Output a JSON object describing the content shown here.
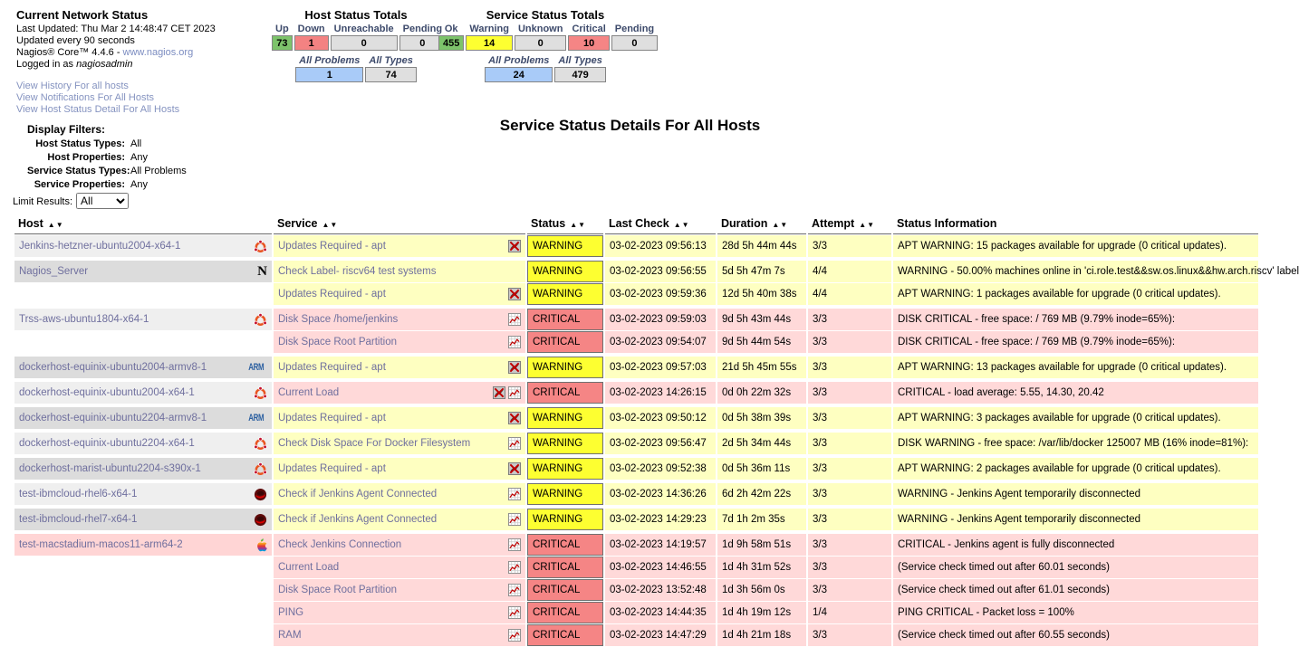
{
  "header": {
    "title": "Current Network Status",
    "last_updated": "Last Updated: Thu Mar 2 14:48:47 CET 2023",
    "update_interval": "Updated every 90 seconds",
    "version_prefix": "Nagios® Core™ 4.4.6 - ",
    "version_link": "www.nagios.org",
    "logged_in_prefix": "Logged in as ",
    "logged_in_user": "nagiosadmin",
    "links": [
      "View History For all hosts",
      "View Notifications For All Hosts",
      "View Host Status Detail For All Hosts"
    ]
  },
  "host_totals": {
    "title": "Host Status Totals",
    "columns": [
      {
        "label": "Up",
        "value": "73",
        "bg": "#7DC36B"
      },
      {
        "label": "Down",
        "value": "1",
        "bg": "#F38282"
      },
      {
        "label": "Unreachable",
        "value": "0",
        "bg": "#DFDFDF"
      },
      {
        "label": "Pending",
        "value": "0",
        "bg": "#DFDFDF"
      }
    ],
    "summary": [
      {
        "label": "All Problems",
        "value": "1",
        "bg": "#A9CBF8"
      },
      {
        "label": "All Types",
        "value": "74",
        "bg": "#DFDFDF"
      }
    ]
  },
  "service_totals": {
    "title": "Service Status Totals",
    "columns": [
      {
        "label": "Ok",
        "value": "455",
        "bg": "#7DC36B"
      },
      {
        "label": "Warning",
        "value": "14",
        "bg": "#FDFF31"
      },
      {
        "label": "Unknown",
        "value": "0",
        "bg": "#DFDFDF"
      },
      {
        "label": "Critical",
        "value": "10",
        "bg": "#F58585"
      },
      {
        "label": "Pending",
        "value": "0",
        "bg": "#DFDFDF"
      }
    ],
    "summary": [
      {
        "label": "All Problems",
        "value": "24",
        "bg": "#A9CBF8"
      },
      {
        "label": "All Types",
        "value": "479",
        "bg": "#DFDFDF"
      }
    ]
  },
  "filters": {
    "title": "Display Filters:",
    "rows": [
      {
        "label": "Host Status Types:",
        "value": "All"
      },
      {
        "label": "Host Properties:",
        "value": "Any"
      },
      {
        "label": "Service Status Types:",
        "value": "All Problems"
      },
      {
        "label": "Service Properties:",
        "value": "Any"
      }
    ]
  },
  "limit": {
    "label": "Limit Results:",
    "value": "All"
  },
  "page_title": "Service Status Details For All Hosts",
  "table": {
    "columns": [
      {
        "label": "Host",
        "sortable": true
      },
      {
        "label": "Service",
        "sortable": true
      },
      {
        "label": "Status",
        "sortable": true
      },
      {
        "label": "Last Check",
        "sortable": true
      },
      {
        "label": "Duration",
        "sortable": true
      },
      {
        "label": "Attempt",
        "sortable": true
      },
      {
        "label": "Status Information",
        "sortable": false
      }
    ],
    "rows": [
      {
        "host": "Jenkins-hetzner-ubuntu2004-x64-1",
        "host_icon": "ubuntu",
        "host_status": "up",
        "service": "Updates Required - apt",
        "service_icons": [
          "notifications-disabled"
        ],
        "status": "WARNING",
        "last_check": "03-02-2023 09:56:13",
        "duration": "28d 5h 44m 44s",
        "attempt": "3/3",
        "info": "APT WARNING: 15 packages available for upgrade (0 critical updates)."
      },
      {
        "host": "Nagios_Server",
        "host_icon": "nagios",
        "host_status": "up",
        "service": "Check Label- riscv64 test systems",
        "service_icons": [],
        "status": "WARNING",
        "last_check": "03-02-2023 09:56:55",
        "duration": "5d 5h 47m 7s",
        "attempt": "4/4",
        "info": "WARNING - 50.00% machines online in 'ci.role.test&&sw.os.linux&&hw.arch.riscv' label"
      },
      {
        "host": "",
        "host_icon": "",
        "host_status": "up",
        "service": "Updates Required - apt",
        "service_icons": [
          "notifications-disabled"
        ],
        "status": "WARNING",
        "last_check": "03-02-2023 09:59:36",
        "duration": "12d 5h 40m 38s",
        "attempt": "4/4",
        "info": "APT WARNING: 1 packages available for upgrade (0 critical updates)."
      },
      {
        "host": "Trss-aws-ubuntu1804-x64-1",
        "host_icon": "ubuntu",
        "host_status": "up",
        "service": "Disk Space /home/jenkins",
        "service_icons": [
          "performance-graph"
        ],
        "status": "CRITICAL",
        "last_check": "03-02-2023 09:59:03",
        "duration": "9d 5h 43m 44s",
        "attempt": "3/3",
        "info": "DISK CRITICAL - free space: / 769 MB (9.79% inode=65%):"
      },
      {
        "host": "",
        "host_icon": "",
        "host_status": "up",
        "service": "Disk Space Root Partition",
        "service_icons": [
          "performance-graph"
        ],
        "status": "CRITICAL",
        "last_check": "03-02-2023 09:54:07",
        "duration": "9d 5h 44m 54s",
        "attempt": "3/3",
        "info": "DISK CRITICAL - free space: / 769 MB (9.79% inode=65%):"
      },
      {
        "host": "dockerhost-equinix-ubuntu2004-armv8-1",
        "host_icon": "arm",
        "host_status": "up",
        "service": "Updates Required - apt",
        "service_icons": [
          "notifications-disabled"
        ],
        "status": "WARNING",
        "last_check": "03-02-2023 09:57:03",
        "duration": "21d 5h 45m 55s",
        "attempt": "3/3",
        "info": "APT WARNING: 13 packages available for upgrade (0 critical updates)."
      },
      {
        "host": "dockerhost-equinix-ubuntu2004-x64-1",
        "host_icon": "ubuntu",
        "host_status": "up",
        "service": "Current Load",
        "service_icons": [
          "notifications-disabled",
          "performance-graph"
        ],
        "status": "CRITICAL",
        "last_check": "03-02-2023 14:26:15",
        "duration": "0d 0h 22m 32s",
        "attempt": "3/3",
        "info": "CRITICAL - load average: 5.55, 14.30, 20.42"
      },
      {
        "host": "dockerhost-equinix-ubuntu2204-armv8-1",
        "host_icon": "arm",
        "host_status": "up",
        "service": "Updates Required - apt",
        "service_icons": [
          "notifications-disabled"
        ],
        "status": "WARNING",
        "last_check": "03-02-2023 09:50:12",
        "duration": "0d 5h 38m 39s",
        "attempt": "3/3",
        "info": "APT WARNING: 3 packages available for upgrade (0 critical updates)."
      },
      {
        "host": "dockerhost-equinix-ubuntu2204-x64-1",
        "host_icon": "ubuntu",
        "host_status": "up",
        "service": "Check Disk Space For Docker Filesystem",
        "service_icons": [
          "performance-graph"
        ],
        "status": "WARNING",
        "last_check": "03-02-2023 09:56:47",
        "duration": "2d 5h 34m 44s",
        "attempt": "3/3",
        "info": "DISK WARNING - free space: /var/lib/docker 125007 MB (16% inode=81%):"
      },
      {
        "host": "dockerhost-marist-ubuntu2204-s390x-1",
        "host_icon": "ubuntu",
        "host_status": "up",
        "service": "Updates Required - apt",
        "service_icons": [
          "notifications-disabled"
        ],
        "status": "WARNING",
        "last_check": "03-02-2023 09:52:38",
        "duration": "0d 5h 36m 11s",
        "attempt": "3/3",
        "info": "APT WARNING: 2 packages available for upgrade (0 critical updates)."
      },
      {
        "host": "test-ibmcloud-rhel6-x64-1",
        "host_icon": "redhat",
        "host_status": "up",
        "service": "Check if Jenkins Agent Connected",
        "service_icons": [
          "performance-graph"
        ],
        "status": "WARNING",
        "last_check": "03-02-2023 14:36:26",
        "duration": "6d 2h 42m 22s",
        "attempt": "3/3",
        "info": "WARNING - Jenkins Agent temporarily disconnected"
      },
      {
        "host": "test-ibmcloud-rhel7-x64-1",
        "host_icon": "redhat",
        "host_status": "up",
        "service": "Check if Jenkins Agent Connected",
        "service_icons": [
          "performance-graph"
        ],
        "status": "WARNING",
        "last_check": "03-02-2023 14:29:23",
        "duration": "7d 1h 2m 35s",
        "attempt": "3/3",
        "info": "WARNING - Jenkins Agent temporarily disconnected"
      },
      {
        "host": "test-macstadium-macos11-arm64-2",
        "host_icon": "apple",
        "host_status": "down",
        "service": "Check Jenkins Connection",
        "service_icons": [
          "performance-graph"
        ],
        "status": "CRITICAL",
        "last_check": "03-02-2023 14:19:57",
        "duration": "1d 9h 58m 51s",
        "attempt": "3/3",
        "info": "CRITICAL - Jenkins agent is fully disconnected"
      },
      {
        "host": "",
        "host_icon": "",
        "host_status": "up",
        "service": "Current Load",
        "service_icons": [
          "performance-graph"
        ],
        "status": "CRITICAL",
        "last_check": "03-02-2023 14:46:55",
        "duration": "1d 4h 31m 52s",
        "attempt": "3/3",
        "info": "(Service check timed out after 60.01 seconds)"
      },
      {
        "host": "",
        "host_icon": "",
        "host_status": "up",
        "service": "Disk Space Root Partition",
        "service_icons": [
          "performance-graph"
        ],
        "status": "CRITICAL",
        "last_check": "03-02-2023 13:52:48",
        "duration": "1d 3h 56m 0s",
        "attempt": "3/3",
        "info": "(Service check timed out after 61.01 seconds)"
      },
      {
        "host": "",
        "host_icon": "",
        "host_status": "up",
        "service": "PING",
        "service_icons": [
          "performance-graph"
        ],
        "status": "CRITICAL",
        "last_check": "03-02-2023 14:44:35",
        "duration": "1d 4h 19m 12s",
        "attempt": "1/4",
        "info": "PING CRITICAL - Packet loss = 100%"
      },
      {
        "host": "",
        "host_icon": "",
        "host_status": "up",
        "service": "RAM",
        "service_icons": [
          "performance-graph"
        ],
        "status": "CRITICAL",
        "last_check": "03-02-2023 14:47:29",
        "duration": "1d 4h 21m 18s",
        "attempt": "3/3",
        "info": "(Service check timed out after 60.55 seconds)"
      }
    ]
  },
  "colors": {
    "ok_green": "#7DC36B",
    "warning_yellow": "#FDFF31",
    "critical_red": "#F58585",
    "problems_blue": "#A9CBF8",
    "neutral_gray": "#DFDFDF",
    "warning_row_bg": "#FEFFC1",
    "critical_row_bg": "#FFD9D9",
    "link_blue": "#8593C0",
    "table_link_purple": "#6F6F9E"
  }
}
